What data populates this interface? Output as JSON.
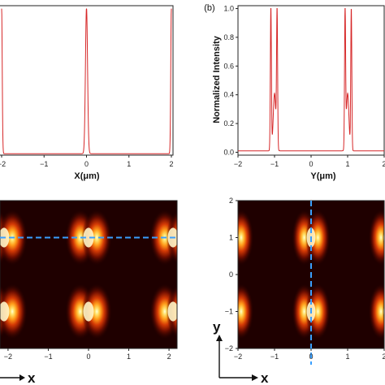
{
  "chart_data": [
    {
      "type": "line",
      "panel": "",
      "xlabel": "X(μm)",
      "ylabel": "",
      "xlim": [
        -2,
        2
      ],
      "ylim": [
        0,
        1.02
      ],
      "xticks": [
        "-2",
        "-1",
        "0",
        "1",
        "2"
      ],
      "color": "#d62728",
      "peaks": [
        {
          "x": -2.0,
          "y": 1.0,
          "width": 0.02
        },
        {
          "x": 0.0,
          "y": 1.0,
          "width": 0.035
        },
        {
          "x": 2.0,
          "y": 1.0,
          "width": 0.02
        }
      ]
    },
    {
      "type": "line",
      "panel": "(b)",
      "xlabel": "Y(μm)",
      "ylabel": "Normalized Intensity",
      "xlim": [
        -2,
        2
      ],
      "ylim": [
        -0.02,
        1.02
      ],
      "xticks": [
        "-2",
        "-1",
        "0",
        "1",
        "2"
      ],
      "yticks": [
        "0.0",
        "0.2",
        "0.4",
        "0.6",
        "0.8",
        "1.0"
      ],
      "color": "#d62728",
      "peaks": [
        {
          "x": -1.1,
          "y": 1.0,
          "width": 0.02
        },
        {
          "x": -1.0,
          "y": 0.4,
          "width": 0.05
        },
        {
          "x": -0.93,
          "y": 0.95,
          "width": 0.02
        },
        {
          "x": 0.93,
          "y": 0.97,
          "width": 0.02
        },
        {
          "x": 1.0,
          "y": 0.4,
          "width": 0.05
        },
        {
          "x": 1.1,
          "y": 0.99,
          "width": 0.02
        }
      ]
    },
    {
      "type": "heatmap",
      "panel": "",
      "xticks": [
        "-2",
        "-1",
        "0",
        "1",
        "2"
      ],
      "xlim": [
        -2.2,
        2.2
      ],
      "ylim": [
        -2,
        2
      ],
      "axis_arrow_label": "x",
      "dashed_line": {
        "orientation": "horizontal",
        "value": 1.0,
        "color": "#3aa0ff"
      },
      "spots": [
        {
          "x": -2.1,
          "y": 1.0
        },
        {
          "x": 0.0,
          "y": 1.0
        },
        {
          "x": 2.1,
          "y": 1.0
        },
        {
          "x": -2.1,
          "y": -1.0
        },
        {
          "x": 0.0,
          "y": -1.0
        },
        {
          "x": 2.1,
          "y": -1.0
        }
      ]
    },
    {
      "type": "heatmap",
      "panel": "",
      "xticks": [
        "-2",
        "-1",
        "0",
        "1",
        "2"
      ],
      "yticks": [
        "2",
        "1",
        "0",
        "-1",
        "-2"
      ],
      "xlim": [
        -2,
        2
      ],
      "ylim": [
        -2,
        2
      ],
      "axis_arrow_labels": [
        "y",
        "x"
      ],
      "dashed_line": {
        "orientation": "vertical",
        "value": 0.0,
        "color": "#3aa0ff"
      },
      "spots": [
        {
          "x": -2.1,
          "y": 1.0
        },
        {
          "x": 0.0,
          "y": 1.0
        },
        {
          "x": 2.1,
          "y": 1.0
        },
        {
          "x": -2.1,
          "y": -1.0
        },
        {
          "x": 0.0,
          "y": -1.0
        },
        {
          "x": 2.1,
          "y": -1.0
        }
      ]
    }
  ]
}
